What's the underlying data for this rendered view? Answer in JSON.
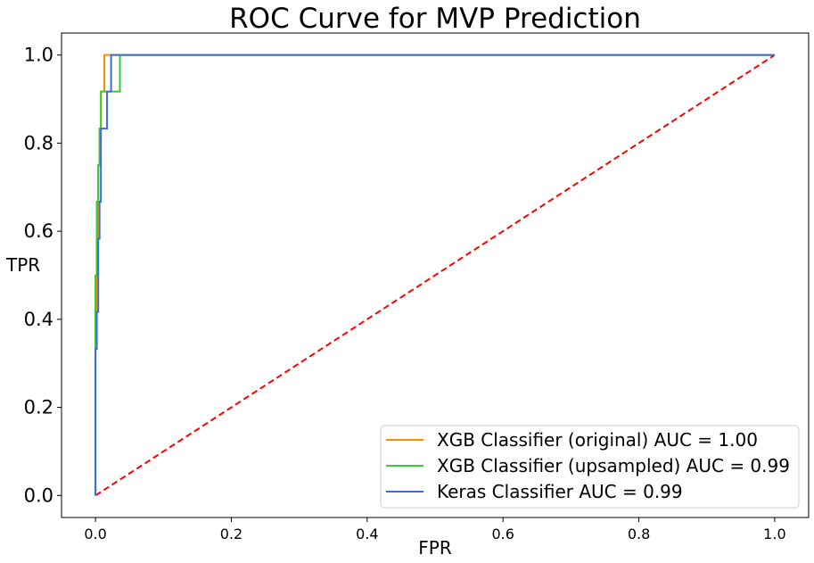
{
  "chart_data": {
    "type": "line",
    "title": "ROC Curve for MVP Prediction",
    "xlabel": "FPR",
    "ylabel": "TPR",
    "xlim": [
      -0.05,
      1.05
    ],
    "ylim": [
      -0.05,
      1.05
    ],
    "xticks": [
      "0.0",
      "0.2",
      "0.4",
      "0.6",
      "0.8",
      "1.0"
    ],
    "yticks": [
      "0.0",
      "0.2",
      "0.4",
      "0.6",
      "0.8",
      "1.0"
    ],
    "xtick_values": [
      0,
      0.2,
      0.4,
      0.6,
      0.8,
      1.0
    ],
    "ytick_values": [
      0,
      0.2,
      0.4,
      0.6,
      0.8,
      1.0
    ],
    "grid": false,
    "legend_position": "lower-right",
    "series": [
      {
        "name": "XGB Classifier (original) AUC = 1.00",
        "color": "#ff8c00",
        "x": [
          0,
          0,
          0.002,
          0.002,
          0.004,
          0.004,
          0.006,
          0.006,
          0.008,
          0.008,
          0.013,
          0.013,
          1.0
        ],
        "y": [
          0,
          0.417,
          0.417,
          0.583,
          0.583,
          0.75,
          0.75,
          0.833,
          0.833,
          0.917,
          0.917,
          1.0,
          1.0
        ]
      },
      {
        "name": "XGB Classifier (upsampled) AUC = 0.99",
        "color": "#32cd32",
        "x": [
          0,
          0,
          0.002,
          0.002,
          0.004,
          0.004,
          0.006,
          0.006,
          0.008,
          0.008,
          0.015,
          0.015,
          0.036,
          0.036,
          1.0
        ],
        "y": [
          0,
          0.5,
          0.5,
          0.667,
          0.667,
          0.75,
          0.75,
          0.833,
          0.833,
          0.917,
          0.917,
          0.917,
          0.917,
          1.0,
          1.0
        ]
      },
      {
        "name": "Keras Classifier AUC = 0.99",
        "color": "#4169e1",
        "x": [
          0,
          0,
          0.002,
          0.002,
          0.004,
          0.004,
          0.006,
          0.006,
          0.008,
          0.008,
          0.017,
          0.017,
          0.023,
          0.023,
          1.0
        ],
        "y": [
          0,
          0.333,
          0.333,
          0.417,
          0.417,
          0.583,
          0.583,
          0.667,
          0.667,
          0.833,
          0.833,
          0.917,
          0.917,
          1.0,
          1.0
        ]
      }
    ],
    "reference_line": {
      "color": "#ff0000",
      "style": "dashed",
      "x": [
        0,
        1
      ],
      "y": [
        0,
        1
      ]
    }
  }
}
